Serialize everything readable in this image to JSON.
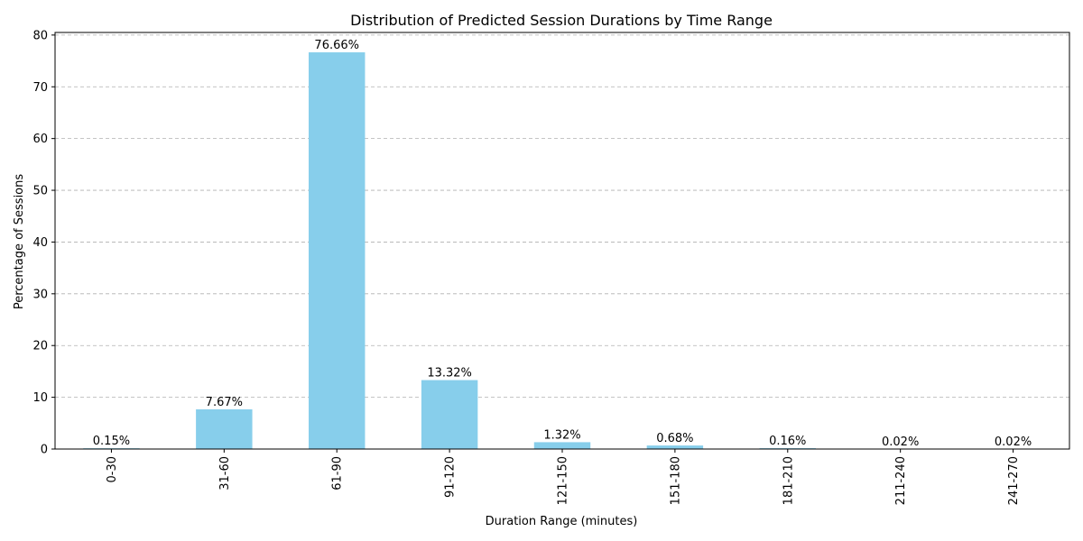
{
  "chart_data": {
    "type": "bar",
    "title": "Distribution of Predicted Session Durations by Time Range",
    "xlabel": "Duration Range (minutes)",
    "ylabel": "Percentage of Sessions",
    "categories": [
      "0-30",
      "31-60",
      "61-90",
      "91-120",
      "121-150",
      "151-180",
      "181-210",
      "211-240",
      "241-270"
    ],
    "values": [
      0.15,
      7.67,
      76.66,
      13.32,
      1.32,
      0.68,
      0.16,
      0.02,
      0.02
    ],
    "value_labels": [
      "0.15%",
      "7.67%",
      "76.66%",
      "13.32%",
      "1.32%",
      "0.68%",
      "0.16%",
      "0.02%",
      "0.02%"
    ],
    "ylim": [
      0,
      80.5
    ],
    "yticks": [
      0,
      10,
      20,
      30,
      40,
      50,
      60,
      70,
      80
    ],
    "grid": "y-dashed",
    "bar_color": "#87ceeb",
    "xtick_rotation": "vertical"
  }
}
